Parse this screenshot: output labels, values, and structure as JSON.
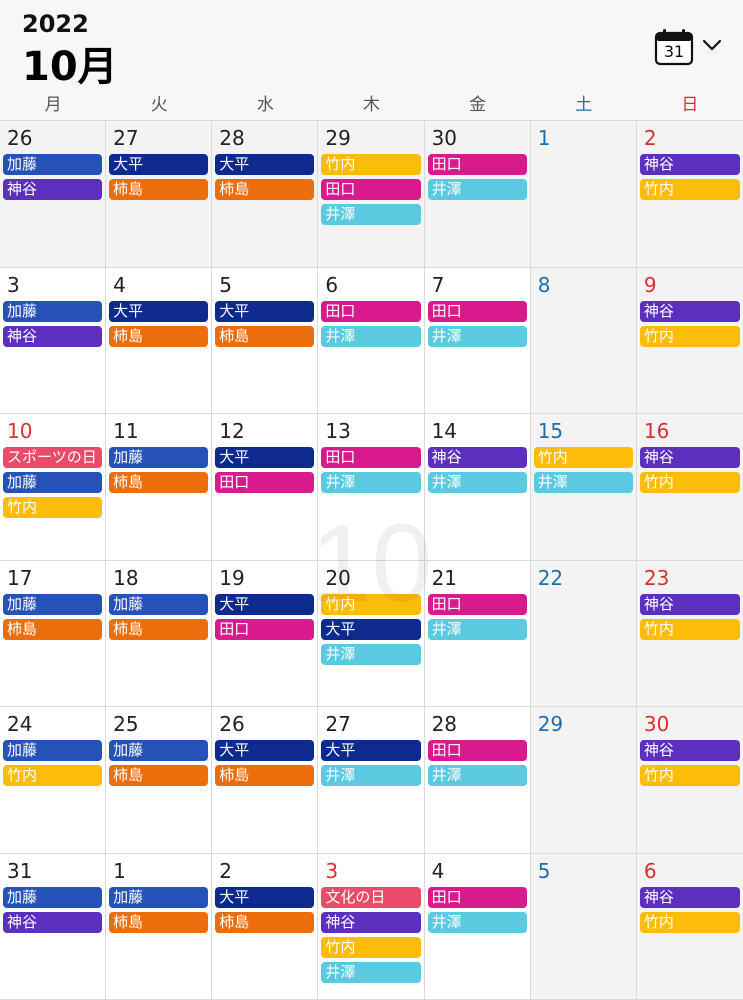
{
  "header": {
    "year": "2022",
    "month": "10月",
    "calendar_icon_day": "31"
  },
  "weekdays": [
    "月",
    "火",
    "水",
    "木",
    "金",
    "土",
    "日"
  ],
  "watermark": "10",
  "colors": {
    "kato": "#2652b8",
    "ohira": "#0d2a8f",
    "kamitani": "#5c2fbf",
    "takeuchi": "#fbbd09",
    "taguchi": "#d81b8c",
    "izawa": "#5bc9df",
    "kakishima": "#ec6d0b",
    "holiday": "#ea4b68",
    "saturday": "#1e6fa8",
    "sunday": "#d93030"
  },
  "weeks": [
    [
      {
        "day": "26",
        "events": [
          "加藤",
          "神谷"
        ]
      },
      {
        "day": "27",
        "events": [
          "大平",
          "柿島"
        ]
      },
      {
        "day": "28",
        "events": [
          "大平",
          "柿島"
        ]
      },
      {
        "day": "29",
        "events": [
          "竹内",
          "田口",
          "井澤"
        ]
      },
      {
        "day": "30",
        "events": [
          "田口",
          "井澤"
        ]
      },
      {
        "day": "1",
        "events": []
      },
      {
        "day": "2",
        "events": [
          "神谷",
          "竹内"
        ]
      }
    ],
    [
      {
        "day": "3",
        "events": [
          "加藤",
          "神谷"
        ]
      },
      {
        "day": "4",
        "events": [
          "大平",
          "柿島"
        ]
      },
      {
        "day": "5",
        "events": [
          "大平",
          "柿島"
        ]
      },
      {
        "day": "6",
        "events": [
          "田口",
          "井澤"
        ]
      },
      {
        "day": "7",
        "events": [
          "田口",
          "井澤"
        ]
      },
      {
        "day": "8",
        "events": []
      },
      {
        "day": "9",
        "events": [
          "神谷",
          "竹内"
        ]
      }
    ],
    [
      {
        "day": "10",
        "events": [
          "スポーツの日",
          "加藤",
          "竹内"
        ]
      },
      {
        "day": "11",
        "events": [
          "加藤",
          "柿島"
        ]
      },
      {
        "day": "12",
        "events": [
          "大平",
          "田口"
        ]
      },
      {
        "day": "13",
        "events": [
          "田口",
          "井澤"
        ]
      },
      {
        "day": "14",
        "events": [
          "神谷",
          "井澤"
        ]
      },
      {
        "day": "15",
        "events": [
          "竹内",
          "井澤"
        ]
      },
      {
        "day": "16",
        "events": [
          "神谷",
          "竹内"
        ]
      }
    ],
    [
      {
        "day": "17",
        "events": [
          "加藤",
          "柿島"
        ]
      },
      {
        "day": "18",
        "events": [
          "加藤",
          "柿島"
        ]
      },
      {
        "day": "19",
        "events": [
          "大平",
          "田口"
        ]
      },
      {
        "day": "20",
        "events": [
          "竹内",
          "大平",
          "井澤"
        ]
      },
      {
        "day": "21",
        "events": [
          "田口",
          "井澤"
        ]
      },
      {
        "day": "22",
        "events": []
      },
      {
        "day": "23",
        "events": [
          "神谷",
          "竹内"
        ]
      }
    ],
    [
      {
        "day": "24",
        "events": [
          "加藤",
          "竹内"
        ]
      },
      {
        "day": "25",
        "events": [
          "加藤",
          "柿島"
        ]
      },
      {
        "day": "26",
        "events": [
          "大平",
          "柿島"
        ]
      },
      {
        "day": "27",
        "events": [
          "大平",
          "井澤"
        ]
      },
      {
        "day": "28",
        "events": [
          "田口",
          "井澤"
        ]
      },
      {
        "day": "29",
        "events": []
      },
      {
        "day": "30",
        "events": [
          "神谷",
          "竹内"
        ]
      }
    ],
    [
      {
        "day": "31",
        "events": [
          "加藤",
          "神谷"
        ]
      },
      {
        "day": "1",
        "events": [
          "加藤",
          "柿島"
        ]
      },
      {
        "day": "2",
        "events": [
          "大平",
          "柿島"
        ]
      },
      {
        "day": "3",
        "events": [
          "文化の日",
          "神谷",
          "竹内",
          "井澤"
        ]
      },
      {
        "day": "4",
        "events": [
          "田口",
          "井澤"
        ]
      },
      {
        "day": "5",
        "events": []
      },
      {
        "day": "6",
        "events": [
          "神谷",
          "竹内"
        ]
      }
    ]
  ]
}
